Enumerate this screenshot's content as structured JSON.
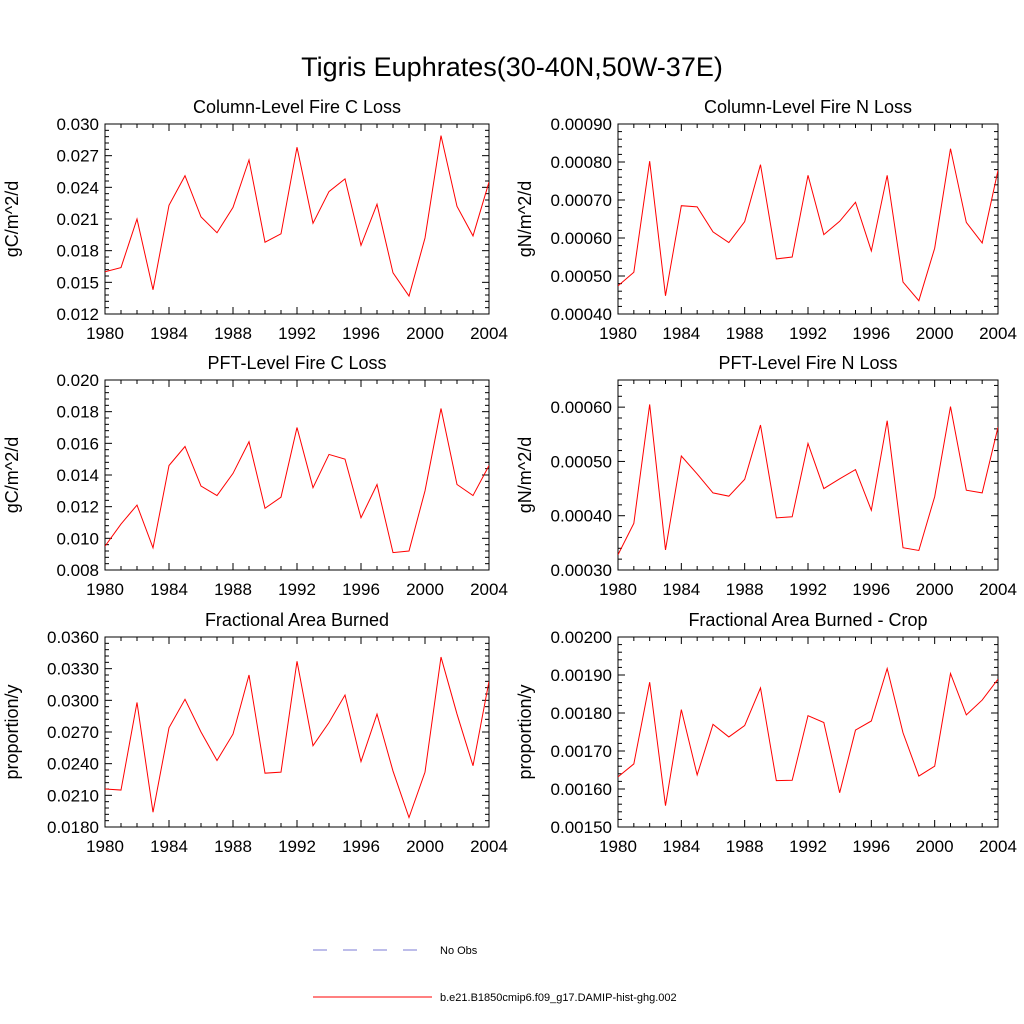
{
  "title": "Tigris Euphrates(30-40N,50W-37E)",
  "chart_data": [
    {
      "type": "line",
      "title": "Column-Level Fire C Loss",
      "ylabel": "gC/m^2/d",
      "xlim": [
        1980,
        2004
      ],
      "ylim": [
        0.012,
        0.03
      ],
      "x_ticks": [
        "1980",
        "1984",
        "1988",
        "1992",
        "1996",
        "2000",
        "2004"
      ],
      "y_ticks": [
        "0.012",
        "0.015",
        "0.018",
        "0.021",
        "0.024",
        "0.027",
        "0.030"
      ],
      "series": [
        {
          "name": "b.e21.B1850cmip6.f09_g17.DAMIP-hist-ghg.002",
          "color": "#ff0000",
          "x": [
            1980,
            1981,
            1982,
            1983,
            1984,
            1985,
            1986,
            1987,
            1988,
            1989,
            1990,
            1991,
            1992,
            1993,
            1994,
            1995,
            1996,
            1997,
            1998,
            1999,
            2000,
            2001,
            2002,
            2003,
            2004
          ],
          "y": [
            0.016,
            0.0164,
            0.021,
            0.0143,
            0.0223,
            0.0251,
            0.0212,
            0.0197,
            0.0221,
            0.0266,
            0.0188,
            0.0196,
            0.0278,
            0.0206,
            0.0236,
            0.0248,
            0.0185,
            0.0224,
            0.0159,
            0.0137,
            0.0192,
            0.0289,
            0.0222,
            0.0194,
            0.0245
          ]
        }
      ]
    },
    {
      "type": "line",
      "title": "Column-Level Fire N Loss",
      "ylabel": "gN/m^2/d",
      "xlim": [
        1980,
        2004
      ],
      "ylim": [
        0.0004,
        0.0009
      ],
      "x_ticks": [
        "1980",
        "1984",
        "1988",
        "1992",
        "1996",
        "2000",
        "2004"
      ],
      "y_ticks": [
        "0.00040",
        "0.00050",
        "0.00060",
        "0.00070",
        "0.00080",
        "0.00090"
      ],
      "series": [
        {
          "name": "b.e21.B1850cmip6.f09_g17.DAMIP-hist-ghg.002",
          "color": "#ff0000",
          "x": [
            1980,
            1981,
            1982,
            1983,
            1984,
            1985,
            1986,
            1987,
            1988,
            1989,
            1990,
            1991,
            1992,
            1993,
            1994,
            1995,
            1996,
            1997,
            1998,
            1999,
            2000,
            2001,
            2002,
            2003,
            2004
          ],
          "y": [
            0.000474,
            0.00051,
            0.000802,
            0.000448,
            0.000685,
            0.000682,
            0.000616,
            0.000588,
            0.000643,
            0.000793,
            0.000545,
            0.00055,
            0.000765,
            0.000609,
            0.000644,
            0.000694,
            0.000566,
            0.000765,
            0.000484,
            0.000435,
            0.000573,
            0.000835,
            0.000641,
            0.000587,
            0.000778
          ]
        }
      ]
    },
    {
      "type": "line",
      "title": "PFT-Level Fire C Loss",
      "ylabel": "gC/m^2/d",
      "xlim": [
        1980,
        2004
      ],
      "ylim": [
        0.008,
        0.02
      ],
      "x_ticks": [
        "1980",
        "1984",
        "1988",
        "1992",
        "1996",
        "2000",
        "2004"
      ],
      "y_ticks": [
        "0.008",
        "0.010",
        "0.012",
        "0.014",
        "0.016",
        "0.018",
        "0.020"
      ],
      "series": [
        {
          "name": "b.e21.B1850cmip6.f09_g17.DAMIP-hist-ghg.002",
          "color": "#ff0000",
          "x": [
            1980,
            1981,
            1982,
            1983,
            1984,
            1985,
            1986,
            1987,
            1988,
            1989,
            1990,
            1991,
            1992,
            1993,
            1994,
            1995,
            1996,
            1997,
            1998,
            1999,
            2000,
            2001,
            2002,
            2003,
            2004
          ],
          "y": [
            0.0095,
            0.0109,
            0.0121,
            0.0094,
            0.0146,
            0.0158,
            0.0133,
            0.0127,
            0.0141,
            0.0161,
            0.0119,
            0.0126,
            0.017,
            0.0132,
            0.0153,
            0.015,
            0.0113,
            0.0134,
            0.0091,
            0.0092,
            0.013,
            0.0182,
            0.0134,
            0.0127,
            0.0146
          ]
        }
      ]
    },
    {
      "type": "line",
      "title": "PFT-Level Fire N Loss",
      "ylabel": "gN/m^2/d",
      "xlim": [
        1980,
        2004
      ],
      "ylim": [
        0.0003,
        0.00065
      ],
      "x_ticks": [
        "1980",
        "1984",
        "1988",
        "1992",
        "1996",
        "2000",
        "2004"
      ],
      "y_ticks": [
        "0.00030",
        "0.00040",
        "0.00050",
        "0.00060"
      ],
      "series": [
        {
          "name": "b.e21.B1850cmip6.f09_g17.DAMIP-hist-ghg.002",
          "color": "#ff0000",
          "x": [
            1980,
            1981,
            1982,
            1983,
            1984,
            1985,
            1986,
            1987,
            1988,
            1989,
            1990,
            1991,
            1992,
            1993,
            1994,
            1995,
            1996,
            1997,
            1998,
            1999,
            2000,
            2001,
            2002,
            2003,
            2004
          ],
          "y": [
            0.000328,
            0.000386,
            0.000605,
            0.000337,
            0.00051,
            0.000477,
            0.000442,
            0.000436,
            0.000467,
            0.000567,
            0.000396,
            0.000398,
            0.000533,
            0.00045,
            0.000468,
            0.000485,
            0.00041,
            0.000575,
            0.000341,
            0.000336,
            0.000435,
            0.000601,
            0.000447,
            0.000442,
            0.000563
          ]
        }
      ]
    },
    {
      "type": "line",
      "title": "Fractional Area Burned",
      "ylabel": "proportion/y",
      "xlim": [
        1980,
        2004
      ],
      "ylim": [
        0.018,
        0.036
      ],
      "x_ticks": [
        "1980",
        "1984",
        "1988",
        "1992",
        "1996",
        "2000",
        "2004"
      ],
      "y_ticks": [
        "0.0180",
        "0.0210",
        "0.0240",
        "0.0270",
        "0.0300",
        "0.0330",
        "0.0360"
      ],
      "series": [
        {
          "name": "b.e21.B1850cmip6.f09_g17.DAMIP-hist-ghg.002",
          "color": "#ff0000",
          "x": [
            1980,
            1981,
            1982,
            1983,
            1984,
            1985,
            1986,
            1987,
            1988,
            1989,
            1990,
            1991,
            1992,
            1993,
            1994,
            1995,
            1996,
            1997,
            1998,
            1999,
            2000,
            2001,
            2002,
            2003,
            2004
          ],
          "y": [
            0.0216,
            0.0215,
            0.0298,
            0.0194,
            0.0274,
            0.0301,
            0.027,
            0.0243,
            0.0268,
            0.0324,
            0.0231,
            0.0232,
            0.0337,
            0.0257,
            0.0279,
            0.0305,
            0.0242,
            0.0287,
            0.0233,
            0.0189,
            0.0232,
            0.0341,
            0.0287,
            0.0238,
            0.0318
          ]
        }
      ]
    },
    {
      "type": "line",
      "title": "Fractional Area Burned - Crop",
      "ylabel": "proportion/y",
      "xlim": [
        1980,
        2004
      ],
      "ylim": [
        0.0015,
        0.002
      ],
      "x_ticks": [
        "1980",
        "1984",
        "1988",
        "1992",
        "1996",
        "2000",
        "2004"
      ],
      "y_ticks": [
        "0.00150",
        "0.00160",
        "0.00170",
        "0.00180",
        "0.00190",
        "0.00200"
      ],
      "series": [
        {
          "name": "b.e21.B1850cmip6.f09_g17.DAMIP-hist-ghg.002",
          "color": "#ff0000",
          "x": [
            1980,
            1981,
            1982,
            1983,
            1984,
            1985,
            1986,
            1987,
            1988,
            1989,
            1990,
            1991,
            1992,
            1993,
            1994,
            1995,
            1996,
            1997,
            1998,
            1999,
            2000,
            2001,
            2002,
            2003,
            2004
          ],
          "y": [
            0.001632,
            0.001666,
            0.001881,
            0.001556,
            0.001809,
            0.001637,
            0.00177,
            0.001737,
            0.001767,
            0.001866,
            0.001622,
            0.001623,
            0.001793,
            0.001775,
            0.00159,
            0.001755,
            0.001779,
            0.001917,
            0.001748,
            0.001634,
            0.00166,
            0.001904,
            0.001795,
            0.001834,
            0.001889
          ]
        }
      ]
    }
  ],
  "legend": {
    "items": [
      {
        "label": "No Obs",
        "style": "dashed",
        "color": "#7b7bd6"
      },
      {
        "label": "b.e21.B1850cmip6.f09_g17.DAMIP-hist-ghg.002",
        "style": "solid",
        "color": "#ff0000"
      }
    ]
  }
}
